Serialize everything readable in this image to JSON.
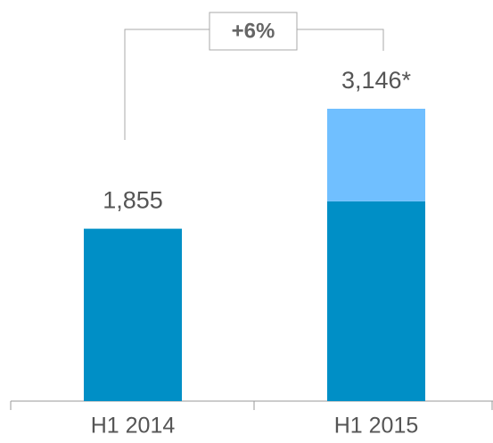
{
  "chart_data": {
    "type": "stacked-bar",
    "categories": [
      "H1 2014",
      "H1 2015"
    ],
    "series": [
      {
        "color": "#008fc6",
        "values": [
          1855,
          2150
        ]
      },
      {
        "color": "#70bfff",
        "values": [
          null,
          996
        ]
      }
    ],
    "total_labels": [
      "1,855",
      "3,146*"
    ],
    "annotation": "+6%"
  }
}
